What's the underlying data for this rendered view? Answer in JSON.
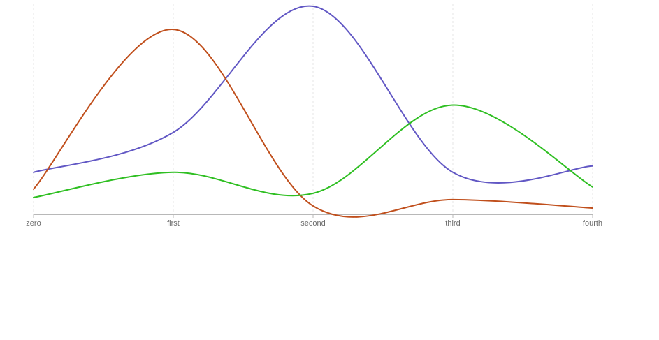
{
  "chart_data": {
    "type": "line",
    "categories": [
      "zero",
      "first",
      "second",
      "third",
      "fourth"
    ],
    "ylim": [
      0,
      100
    ],
    "grid": true,
    "legend": "none",
    "title": "",
    "xlabel": "",
    "ylabel": "",
    "series": [
      {
        "color": "#6157c4",
        "values": [
          20,
          39,
          99,
          20,
          23
        ]
      },
      {
        "color": "#c04f1c",
        "values": [
          12,
          88,
          4,
          7,
          3
        ]
      },
      {
        "color": "#2fbf22",
        "values": [
          8,
          20,
          10,
          52,
          13
        ]
      }
    ]
  }
}
